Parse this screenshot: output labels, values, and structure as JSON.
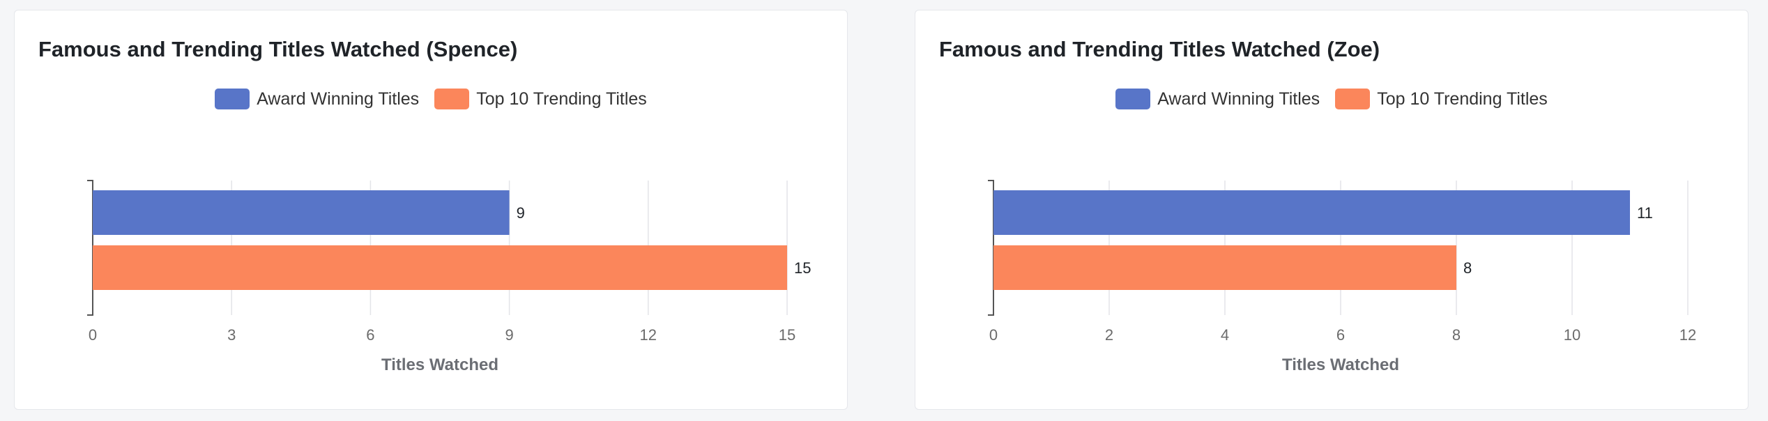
{
  "colors": {
    "award": "#5875c8",
    "trending": "#fb865b",
    "grid": "#e3e4e8",
    "axis": "#555555"
  },
  "chart_data": [
    {
      "type": "bar",
      "orientation": "horizontal",
      "title": "Famous and Trending Titles Watched (Spence)",
      "xlabel": "Titles Watched",
      "ylabel": "",
      "legend": "top-center",
      "grid": true,
      "xlim": [
        0,
        15
      ],
      "xticks": [
        "0",
        "3",
        "6",
        "9",
        "12",
        "15"
      ],
      "series": [
        {
          "name": "Award Winning Titles",
          "values": [
            9
          ],
          "color": "#5875c8"
        },
        {
          "name": "Top 10 Trending Titles",
          "values": [
            15
          ],
          "color": "#fb865b"
        }
      ]
    },
    {
      "type": "bar",
      "orientation": "horizontal",
      "title": "Famous and Trending Titles Watched (Zoe)",
      "xlabel": "Titles Watched",
      "ylabel": "",
      "legend": "top-center",
      "grid": true,
      "xlim": [
        0,
        12
      ],
      "xticks": [
        "0",
        "2",
        "4",
        "6",
        "8",
        "10",
        "12"
      ],
      "series": [
        {
          "name": "Award Winning Titles",
          "values": [
            11
          ],
          "color": "#5875c8"
        },
        {
          "name": "Top 10 Trending Titles",
          "values": [
            8
          ],
          "color": "#fb865b"
        }
      ]
    }
  ]
}
